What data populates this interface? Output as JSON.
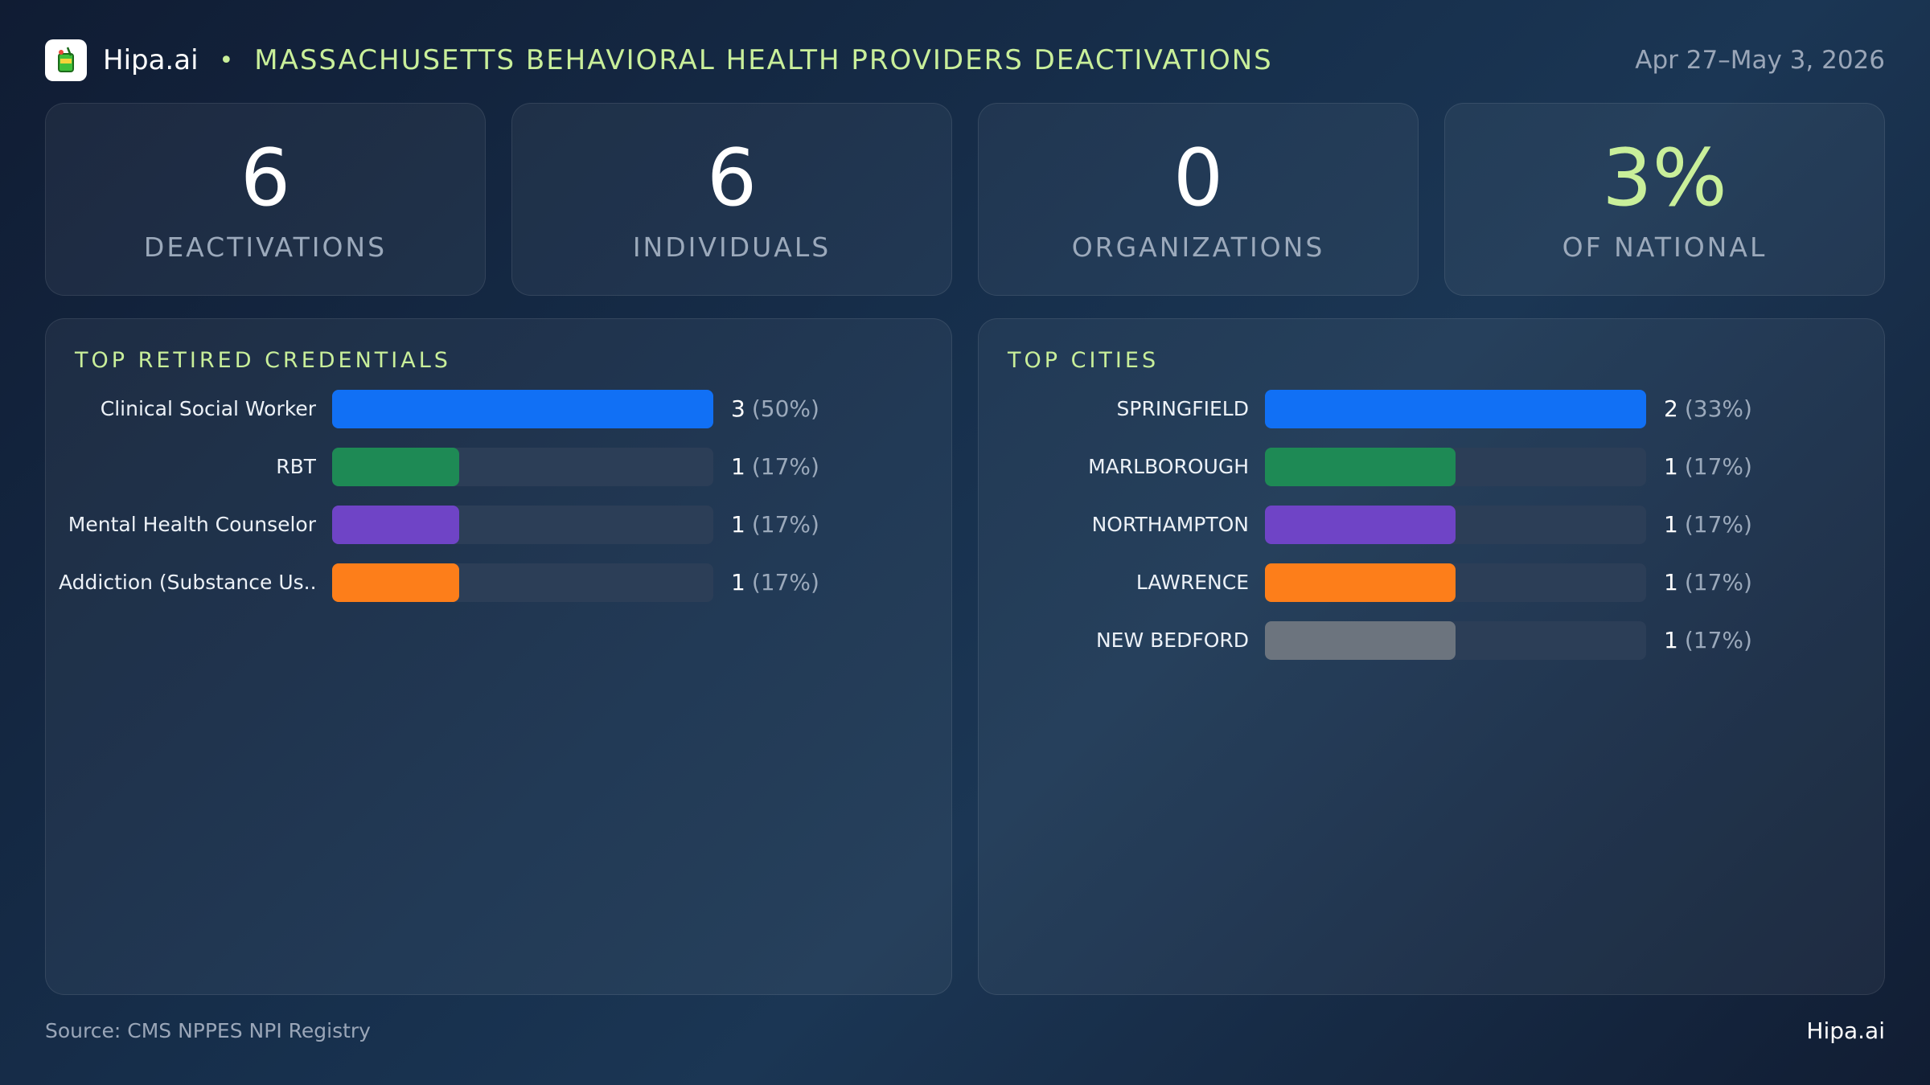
{
  "header": {
    "brand": "Hipa.ai",
    "separator": "•",
    "title": "MASSACHUSETTS BEHAVIORAL HEALTH PROVIDERS DEACTIVATIONS",
    "date_range": "Apr 27–May 3, 2026",
    "logo_icon": "cocktail-glass-icon"
  },
  "kpis": [
    {
      "value": "6",
      "label": "DEACTIVATIONS"
    },
    {
      "value": "6",
      "label": "INDIVIDUALS"
    },
    {
      "value": "0",
      "label": "ORGANIZATIONS"
    },
    {
      "value": "3%",
      "label": "OF NATIONAL"
    }
  ],
  "colors": {
    "accent": "#c9ef9a",
    "bar_palette": [
      "#1170f5",
      "#1e8a55",
      "#6f44c6",
      "#fd7e1a",
      "#6c747e"
    ]
  },
  "chart_data": [
    {
      "type": "bar",
      "orientation": "horizontal",
      "title": "TOP RETIRED CREDENTIALS",
      "categories": [
        "Clinical Social Worker",
        "RBT",
        "Mental Health Counselor",
        "Addiction (Substance Us..."
      ],
      "values": [
        3,
        1,
        1,
        1
      ],
      "percent_labels": [
        "(50%)",
        "(17%)",
        "(17%)",
        "(17%)"
      ],
      "xlim": [
        0,
        3
      ]
    },
    {
      "type": "bar",
      "orientation": "horizontal",
      "title": "TOP CITIES",
      "categories": [
        "SPRINGFIELD",
        "MARLBOROUGH",
        "NORTHAMPTON",
        "LAWRENCE",
        "NEW BEDFORD"
      ],
      "values": [
        2,
        1,
        1,
        1,
        1
      ],
      "percent_labels": [
        "(33%)",
        "(17%)",
        "(17%)",
        "(17%)",
        "(17%)"
      ],
      "xlim": [
        0,
        2
      ]
    }
  ],
  "footer": {
    "source": "Source: CMS NPPES NPI Registry",
    "brand": "Hipa.ai"
  }
}
